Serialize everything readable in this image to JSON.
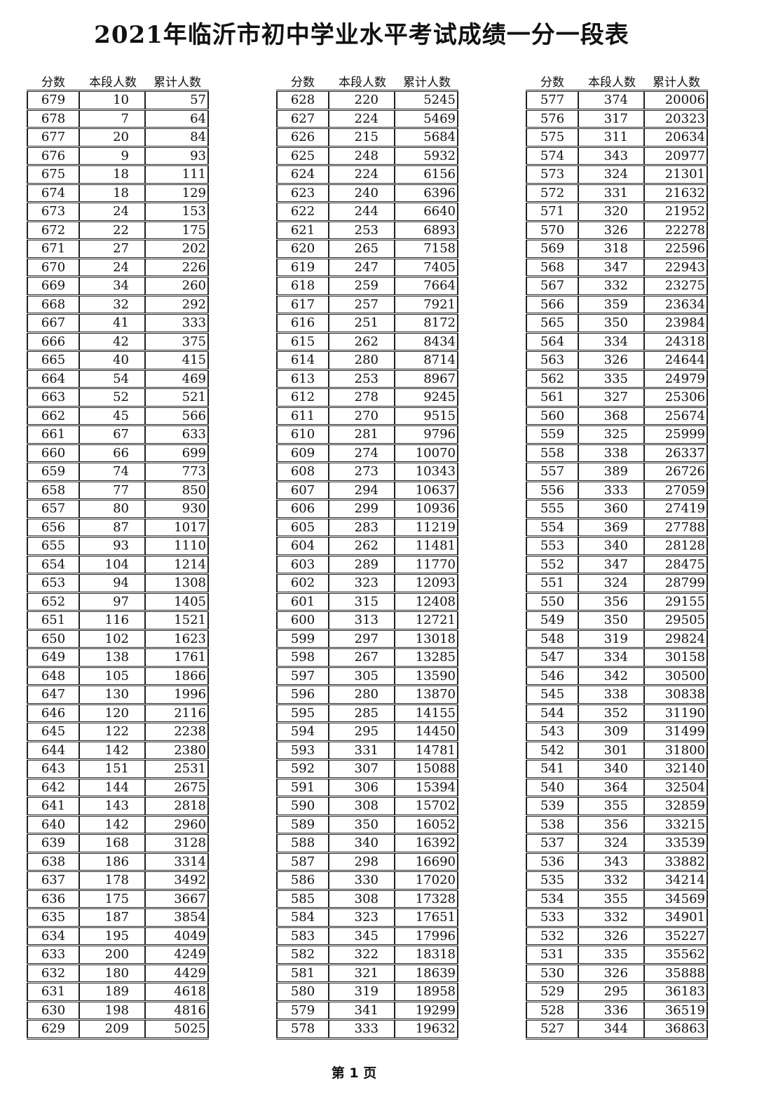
{
  "title": "2021年临沂市初中学业水平考试成绩一分一段表",
  "columns": [
    "分数",
    "本段人数",
    "累计人数"
  ],
  "footer": "第 1 页",
  "tables": [
    [
      [
        679,
        10,
        57
      ],
      [
        678,
        7,
        64
      ],
      [
        677,
        20,
        84
      ],
      [
        676,
        9,
        93
      ],
      [
        675,
        18,
        111
      ],
      [
        674,
        18,
        129
      ],
      [
        673,
        24,
        153
      ],
      [
        672,
        22,
        175
      ],
      [
        671,
        27,
        202
      ],
      [
        670,
        24,
        226
      ],
      [
        669,
        34,
        260
      ],
      [
        668,
        32,
        292
      ],
      [
        667,
        41,
        333
      ],
      [
        666,
        42,
        375
      ],
      [
        665,
        40,
        415
      ],
      [
        664,
        54,
        469
      ],
      [
        663,
        52,
        521
      ],
      [
        662,
        45,
        566
      ],
      [
        661,
        67,
        633
      ],
      [
        660,
        66,
        699
      ],
      [
        659,
        74,
        773
      ],
      [
        658,
        77,
        850
      ],
      [
        657,
        80,
        930
      ],
      [
        656,
        87,
        1017
      ],
      [
        655,
        93,
        1110
      ],
      [
        654,
        104,
        1214
      ],
      [
        653,
        94,
        1308
      ],
      [
        652,
        97,
        1405
      ],
      [
        651,
        116,
        1521
      ],
      [
        650,
        102,
        1623
      ],
      [
        649,
        138,
        1761
      ],
      [
        648,
        105,
        1866
      ],
      [
        647,
        130,
        1996
      ],
      [
        646,
        120,
        2116
      ],
      [
        645,
        122,
        2238
      ],
      [
        644,
        142,
        2380
      ],
      [
        643,
        151,
        2531
      ],
      [
        642,
        144,
        2675
      ],
      [
        641,
        143,
        2818
      ],
      [
        640,
        142,
        2960
      ],
      [
        639,
        168,
        3128
      ],
      [
        638,
        186,
        3314
      ],
      [
        637,
        178,
        3492
      ],
      [
        636,
        175,
        3667
      ],
      [
        635,
        187,
        3854
      ],
      [
        634,
        195,
        4049
      ],
      [
        633,
        200,
        4249
      ],
      [
        632,
        180,
        4429
      ],
      [
        631,
        189,
        4618
      ],
      [
        630,
        198,
        4816
      ],
      [
        629,
        209,
        5025
      ]
    ],
    [
      [
        628,
        220,
        5245
      ],
      [
        627,
        224,
        5469
      ],
      [
        626,
        215,
        5684
      ],
      [
        625,
        248,
        5932
      ],
      [
        624,
        224,
        6156
      ],
      [
        623,
        240,
        6396
      ],
      [
        622,
        244,
        6640
      ],
      [
        621,
        253,
        6893
      ],
      [
        620,
        265,
        7158
      ],
      [
        619,
        247,
        7405
      ],
      [
        618,
        259,
        7664
      ],
      [
        617,
        257,
        7921
      ],
      [
        616,
        251,
        8172
      ],
      [
        615,
        262,
        8434
      ],
      [
        614,
        280,
        8714
      ],
      [
        613,
        253,
        8967
      ],
      [
        612,
        278,
        9245
      ],
      [
        611,
        270,
        9515
      ],
      [
        610,
        281,
        9796
      ],
      [
        609,
        274,
        10070
      ],
      [
        608,
        273,
        10343
      ],
      [
        607,
        294,
        10637
      ],
      [
        606,
        299,
        10936
      ],
      [
        605,
        283,
        11219
      ],
      [
        604,
        262,
        11481
      ],
      [
        603,
        289,
        11770
      ],
      [
        602,
        323,
        12093
      ],
      [
        601,
        315,
        12408
      ],
      [
        600,
        313,
        12721
      ],
      [
        599,
        297,
        13018
      ],
      [
        598,
        267,
        13285
      ],
      [
        597,
        305,
        13590
      ],
      [
        596,
        280,
        13870
      ],
      [
        595,
        285,
        14155
      ],
      [
        594,
        295,
        14450
      ],
      [
        593,
        331,
        14781
      ],
      [
        592,
        307,
        15088
      ],
      [
        591,
        306,
        15394
      ],
      [
        590,
        308,
        15702
      ],
      [
        589,
        350,
        16052
      ],
      [
        588,
        340,
        16392
      ],
      [
        587,
        298,
        16690
      ],
      [
        586,
        330,
        17020
      ],
      [
        585,
        308,
        17328
      ],
      [
        584,
        323,
        17651
      ],
      [
        583,
        345,
        17996
      ],
      [
        582,
        322,
        18318
      ],
      [
        581,
        321,
        18639
      ],
      [
        580,
        319,
        18958
      ],
      [
        579,
        341,
        19299
      ],
      [
        578,
        333,
        19632
      ]
    ],
    [
      [
        577,
        374,
        20006
      ],
      [
        576,
        317,
        20323
      ],
      [
        575,
        311,
        20634
      ],
      [
        574,
        343,
        20977
      ],
      [
        573,
        324,
        21301
      ],
      [
        572,
        331,
        21632
      ],
      [
        571,
        320,
        21952
      ],
      [
        570,
        326,
        22278
      ],
      [
        569,
        318,
        22596
      ],
      [
        568,
        347,
        22943
      ],
      [
        567,
        332,
        23275
      ],
      [
        566,
        359,
        23634
      ],
      [
        565,
        350,
        23984
      ],
      [
        564,
        334,
        24318
      ],
      [
        563,
        326,
        24644
      ],
      [
        562,
        335,
        24979
      ],
      [
        561,
        327,
        25306
      ],
      [
        560,
        368,
        25674
      ],
      [
        559,
        325,
        25999
      ],
      [
        558,
        338,
        26337
      ],
      [
        557,
        389,
        26726
      ],
      [
        556,
        333,
        27059
      ],
      [
        555,
        360,
        27419
      ],
      [
        554,
        369,
        27788
      ],
      [
        553,
        340,
        28128
      ],
      [
        552,
        347,
        28475
      ],
      [
        551,
        324,
        28799
      ],
      [
        550,
        356,
        29155
      ],
      [
        549,
        350,
        29505
      ],
      [
        548,
        319,
        29824
      ],
      [
        547,
        334,
        30158
      ],
      [
        546,
        342,
        30500
      ],
      [
        545,
        338,
        30838
      ],
      [
        544,
        352,
        31190
      ],
      [
        543,
        309,
        31499
      ],
      [
        542,
        301,
        31800
      ],
      [
        541,
        340,
        32140
      ],
      [
        540,
        364,
        32504
      ],
      [
        539,
        355,
        32859
      ],
      [
        538,
        356,
        33215
      ],
      [
        537,
        324,
        33539
      ],
      [
        536,
        343,
        33882
      ],
      [
        535,
        332,
        34214
      ],
      [
        534,
        355,
        34569
      ],
      [
        533,
        332,
        34901
      ],
      [
        532,
        326,
        35227
      ],
      [
        531,
        335,
        35562
      ],
      [
        530,
        326,
        35888
      ],
      [
        529,
        295,
        36183
      ],
      [
        528,
        336,
        36519
      ],
      [
        527,
        344,
        36863
      ]
    ]
  ]
}
